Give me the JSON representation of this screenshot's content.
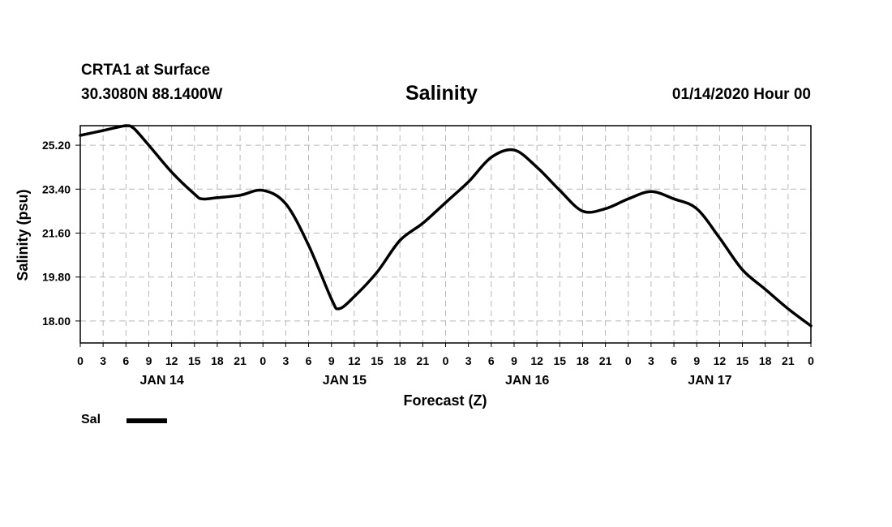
{
  "header": {
    "station": "CRTA1 at Surface",
    "coords": "30.3080N 88.1400W",
    "title": "Salinity",
    "datetime": "01/14/2020 Hour 00"
  },
  "legend": {
    "label": "Sal"
  },
  "chart_data": {
    "type": "line",
    "title": "Salinity",
    "xlabel": "Forecast (Z)",
    "ylabel": "Salinity (psu)",
    "x_unit": "hours from 01/14/2020 00Z",
    "xlim": [
      0,
      96
    ],
    "ylim": [
      17.1,
      26.0
    ],
    "grid": true,
    "legend_position": "below-left",
    "y_ticks": [
      "25.20",
      "23.40",
      "21.60",
      "19.80",
      "18.00"
    ],
    "y_tick_values": [
      25.2,
      23.4,
      21.6,
      19.8,
      18.0
    ],
    "x_tick_labels": [
      "0",
      "3",
      "6",
      "9",
      "12",
      "15",
      "18",
      "21",
      "0",
      "3",
      "6",
      "9",
      "12",
      "15",
      "18",
      "21",
      "0",
      "3",
      "6",
      "9",
      "12",
      "15",
      "18",
      "21",
      "0",
      "3",
      "6",
      "9",
      "12",
      "15",
      "18",
      "21",
      "0"
    ],
    "day_labels": [
      "JAN 14",
      "JAN 15",
      "JAN 16",
      "JAN 17"
    ],
    "series": [
      {
        "name": "Sal",
        "color": "#000000",
        "x": [
          0,
          3,
          6,
          7,
          9,
          12,
          15,
          16,
          18,
          21,
          24,
          27,
          30,
          33,
          34,
          36,
          39,
          42,
          45,
          48,
          51,
          54,
          57,
          60,
          63,
          66,
          69,
          72,
          75,
          78,
          81,
          84,
          87,
          90,
          93,
          96
        ],
        "y": [
          25.6,
          25.8,
          26.0,
          25.9,
          25.2,
          24.1,
          23.2,
          23.0,
          23.05,
          23.15,
          23.35,
          22.8,
          21.1,
          18.9,
          18.5,
          19.0,
          20.0,
          21.3,
          22.0,
          22.85,
          23.7,
          24.7,
          25.0,
          24.3,
          23.35,
          22.5,
          22.6,
          23.0,
          23.3,
          23.0,
          22.6,
          21.4,
          20.1,
          19.3,
          18.5,
          17.8
        ]
      }
    ]
  }
}
